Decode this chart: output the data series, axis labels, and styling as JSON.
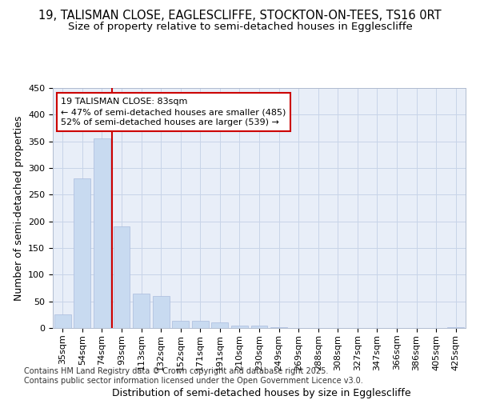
{
  "title1": "19, TALISMAN CLOSE, EAGLESCLIFFE, STOCKTON-ON-TEES, TS16 0RT",
  "title2": "Size of property relative to semi-detached houses in Egglescliffe",
  "xlabel": "Distribution of semi-detached houses by size in Egglescliffe",
  "ylabel": "Number of semi-detached properties",
  "categories": [
    "35sqm",
    "54sqm",
    "74sqm",
    "93sqm",
    "113sqm",
    "132sqm",
    "152sqm",
    "171sqm",
    "191sqm",
    "210sqm",
    "230sqm",
    "249sqm",
    "269sqm",
    "288sqm",
    "308sqm",
    "327sqm",
    "347sqm",
    "366sqm",
    "386sqm",
    "405sqm",
    "425sqm"
  ],
  "values": [
    25,
    280,
    355,
    190,
    65,
    60,
    14,
    14,
    10,
    5,
    5,
    2,
    0,
    0,
    0,
    0,
    0,
    0,
    0,
    0,
    2
  ],
  "bar_color": "#c8daf0",
  "bar_edge_color": "#aabbdd",
  "highlight_line_color": "#cc0000",
  "annotation_text": "19 TALISMAN CLOSE: 83sqm\n← 47% of semi-detached houses are smaller (485)\n52% of semi-detached houses are larger (539) →",
  "annotation_box_facecolor": "#ffffff",
  "annotation_box_edgecolor": "#cc0000",
  "ylim": [
    0,
    450
  ],
  "yticks": [
    0,
    50,
    100,
    150,
    200,
    250,
    300,
    350,
    400,
    450
  ],
  "grid_color": "#c8d4e8",
  "bg_color": "#e8eef8",
  "footer_text": "Contains HM Land Registry data © Crown copyright and database right 2025.\nContains public sector information licensed under the Open Government Licence v3.0.",
  "title1_fontsize": 10.5,
  "title2_fontsize": 9.5,
  "axis_label_fontsize": 9,
  "tick_fontsize": 8,
  "footer_fontsize": 7,
  "annotation_fontsize": 8
}
